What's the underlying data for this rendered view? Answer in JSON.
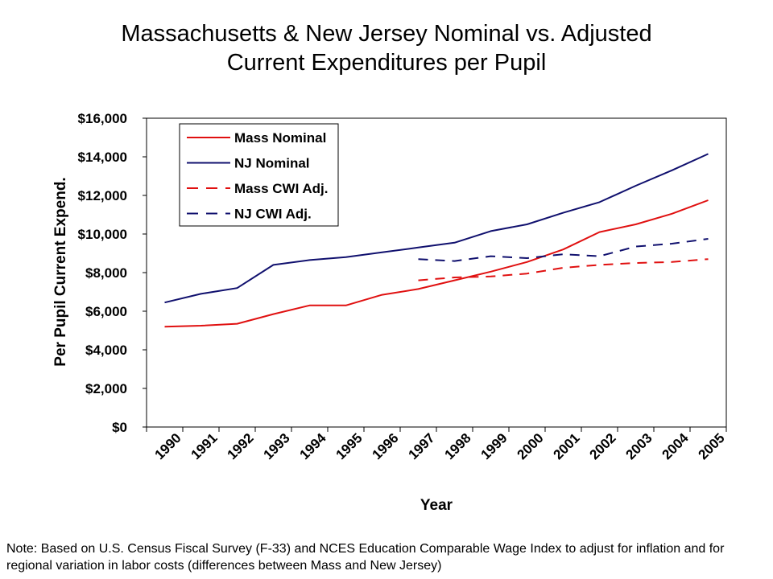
{
  "chart_data": {
    "type": "line",
    "title_line1": "Massachusetts & New Jersey Nominal vs. Adjusted",
    "title_line2": "Current Expenditures per Pupil",
    "xlabel": "Year",
    "ylabel": "Per Pupil Current Expend.",
    "ylim": [
      0,
      16000
    ],
    "yticks": [
      "$0",
      "$2,000",
      "$4,000",
      "$6,000",
      "$8,000",
      "$10,000",
      "$12,000",
      "$14,000",
      "$16,000"
    ],
    "categories": [
      "1990",
      "1991",
      "1992",
      "1993",
      "1994",
      "1995",
      "1996",
      "1997",
      "1998",
      "1999",
      "2000",
      "2001",
      "2002",
      "2003",
      "2004",
      "2005"
    ],
    "legend_position": "top-left",
    "grid": false,
    "series": [
      {
        "name": "Mass Nominal",
        "color": "#e01010",
        "dash": false,
        "values": [
          5200,
          5250,
          5350,
          5850,
          6300,
          6300,
          6850,
          7150,
          7600,
          8050,
          8550,
          9200,
          10100,
          10500,
          11050,
          11750
        ]
      },
      {
        "name": "NJ Nominal",
        "color": "#10106e",
        "dash": false,
        "values": [
          6450,
          6900,
          7200,
          8400,
          8650,
          8800,
          9050,
          9300,
          9550,
          10150,
          10500,
          11100,
          11650,
          12500,
          13300,
          14150
        ]
      },
      {
        "name": "Mass CWI Adj.",
        "color": "#e01010",
        "dash": true,
        "values": [
          null,
          null,
          null,
          null,
          null,
          null,
          null,
          7600,
          7750,
          7800,
          7950,
          8250,
          8400,
          8500,
          8550,
          8700
        ]
      },
      {
        "name": "NJ CWI Adj.",
        "color": "#10106e",
        "dash": true,
        "values": [
          null,
          null,
          null,
          null,
          null,
          null,
          null,
          8700,
          8600,
          8850,
          8750,
          8950,
          8850,
          9350,
          9500,
          9750
        ]
      }
    ]
  },
  "note": "Note: Based on U.S. Census Fiscal Survey (F-33) and NCES Education Comparable Wage Index to adjust for inflation and for regional variation in labor costs (differences between Mass and New Jersey)"
}
